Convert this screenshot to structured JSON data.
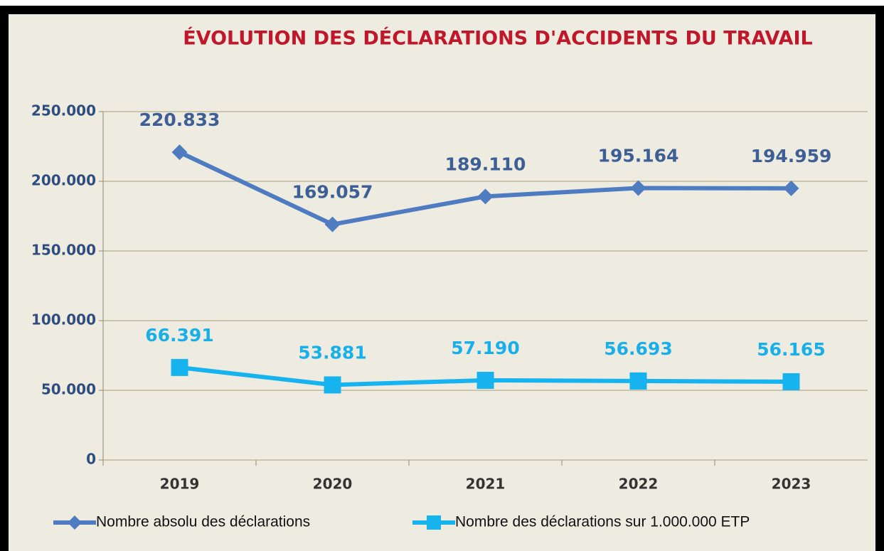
{
  "chart_data": {
    "type": "line",
    "title": "ÉVOLUTION DES DÉCLARATIONS D'ACCIDENTS DU TRAVAIL",
    "categories": [
      "2019",
      "2020",
      "2021",
      "2022",
      "2023"
    ],
    "series": [
      {
        "name": "Nombre absolu des déclarations",
        "color": "#4f7bc1",
        "label_color": "#3e5f95",
        "marker": "diamond",
        "values": [
          220833,
          169057,
          189110,
          195164,
          194959
        ],
        "value_labels": [
          "220.833",
          "169.057",
          "189.110",
          "195.164",
          "194.959"
        ]
      },
      {
        "name": "Nombre des déclarations sur 1.000.000 ETP",
        "color": "#16b3ef",
        "label_color": "#19b0ea",
        "marker": "square",
        "values": [
          66391,
          53881,
          57190,
          56693,
          56165
        ],
        "value_labels": [
          "66.391",
          "53.881",
          "57.190",
          "56.693",
          "56.165"
        ]
      }
    ],
    "ylim": [
      0,
      250000
    ],
    "yticks": [
      0,
      {
        "value": 50000,
        "label": "50.000"
      },
      {
        "value": 100000,
        "label": "100.000"
      },
      {
        "value": 150000,
        "label": "150.000"
      },
      {
        "value": 200000,
        "label": "200.000"
      },
      {
        "value": 250000,
        "label": "250.000"
      }
    ],
    "grid": true,
    "legend": "bottom"
  }
}
